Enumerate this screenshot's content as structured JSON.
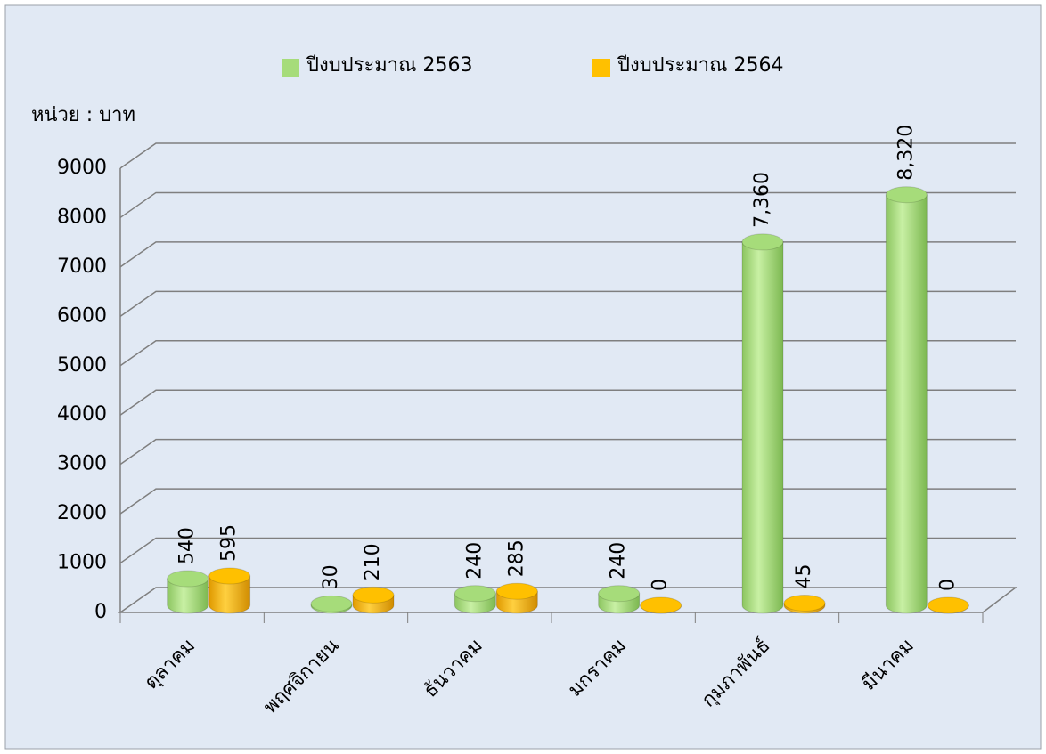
{
  "chart_data": {
    "type": "bar3d",
    "unit_label": "หน่วย : บาท",
    "categories": [
      "ตุลาคม",
      "พฤศจิกายน",
      "ธันวาคม",
      "มกราคม",
      "กุมภาพันธ์",
      "มีนาคม"
    ],
    "series": [
      {
        "name": "ปีงบประมาณ 2563",
        "color": "#a6dc7a",
        "values": [
          540,
          30,
          240,
          240,
          7360,
          8320
        ],
        "value_labels": [
          "540",
          "30",
          "240",
          "240",
          "7,360",
          "8,320"
        ]
      },
      {
        "name": "ปีงบประมาณ 2564",
        "color": "#ffc000",
        "values": [
          595,
          210,
          285,
          0,
          45,
          0
        ],
        "value_labels": [
          "595",
          "210",
          "285",
          "0",
          "45",
          "0"
        ]
      }
    ],
    "ylim": [
      0,
      9000
    ],
    "yticks": [
      0,
      1000,
      2000,
      3000,
      4000,
      5000,
      6000,
      7000,
      8000,
      9000
    ],
    "grid": true
  }
}
